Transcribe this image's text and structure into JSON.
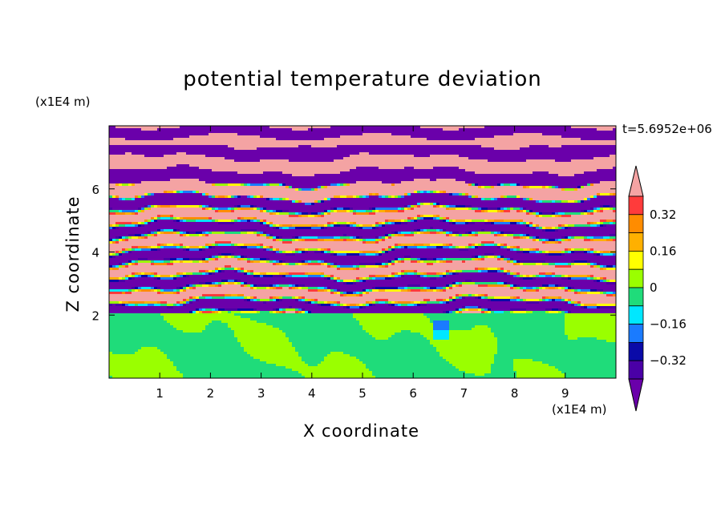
{
  "chart_data": {
    "type": "heatmap",
    "title": "potential temperature deviation",
    "time_label": "t=5.6952e+06",
    "xlabel": "X coordinate",
    "ylabel": "Z coordinate",
    "x_unit": "(x1E4 m)",
    "z_unit": "(x1E4 m)",
    "xlim": [
      0,
      10
    ],
    "ylim": [
      0,
      8
    ],
    "x_ticks": [
      "1",
      "2",
      "3",
      "4",
      "5",
      "6",
      "7",
      "8",
      "9"
    ],
    "y_ticks": [
      "2",
      "4",
      "6"
    ],
    "colorbar": {
      "labels": [
        "0.32",
        "0.16",
        "0",
        "-0.16",
        "-0.32"
      ],
      "label_display": [
        "0.32",
        "0.16",
        "0",
        "−0.16",
        "−0.32"
      ],
      "colors": [
        "#f4a3a3",
        "#ff3b3b",
        "#ff8c00",
        "#ffb000",
        "#ffff00",
        "#9aff00",
        "#1fdc7a",
        "#00e7ff",
        "#1a7bff",
        "#0a0aa8",
        "#4a00a6",
        "#6a00aa"
      ],
      "extend": "both"
    }
  }
}
